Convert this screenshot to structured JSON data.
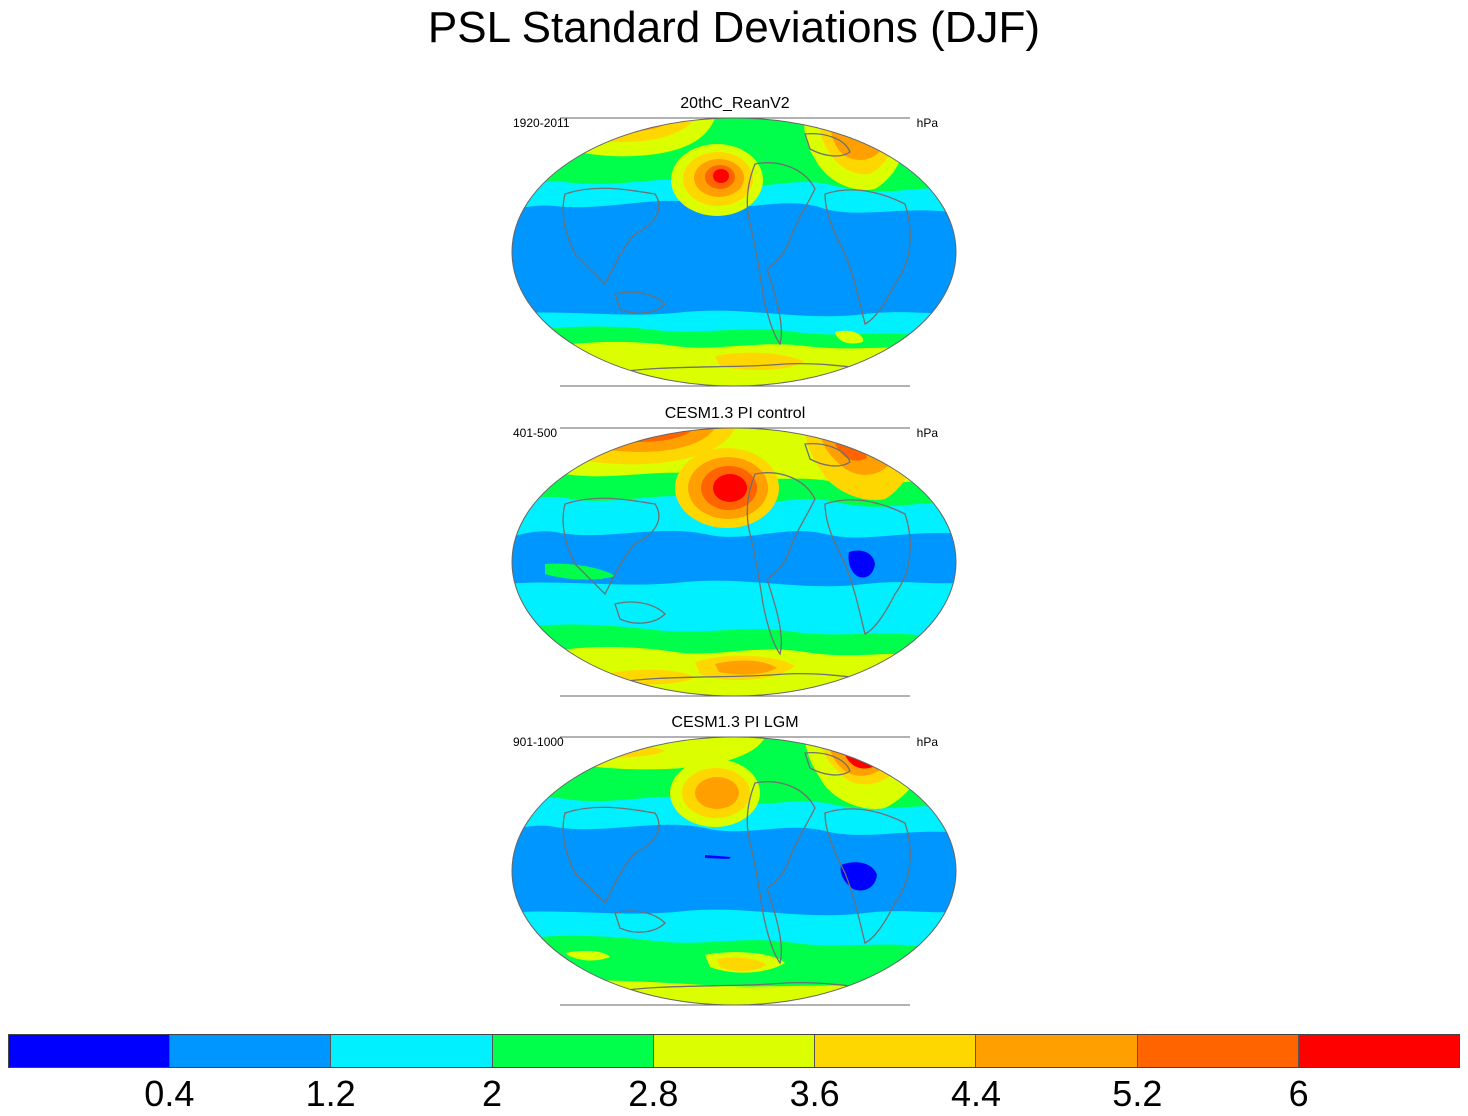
{
  "title": "PSL Standard Deviations (DJF)",
  "panels": [
    {
      "title": "20thC_ReanV2",
      "period": "1920-2011",
      "units": "hPa"
    },
    {
      "title": "CESM1.3 PI control",
      "period": "401-500",
      "units": "hPa"
    },
    {
      "title": "CESM1.3 PI LGM",
      "period": "901-1000",
      "units": "hPa"
    }
  ],
  "colorbar": {
    "colors": [
      "#0000ff",
      "#0096ff",
      "#00f0ff",
      "#00ff4a",
      "#dcff00",
      "#ffd700",
      "#ffa000",
      "#ff6400",
      "#ff0000"
    ],
    "labels": [
      "0.4",
      "1.2",
      "2",
      "2.8",
      "3.6",
      "4.4",
      "5.2",
      "6"
    ]
  },
  "map_colors": {
    "ocean_base": "#0096ff",
    "coastline": "#707070",
    "border": "#666666"
  }
}
